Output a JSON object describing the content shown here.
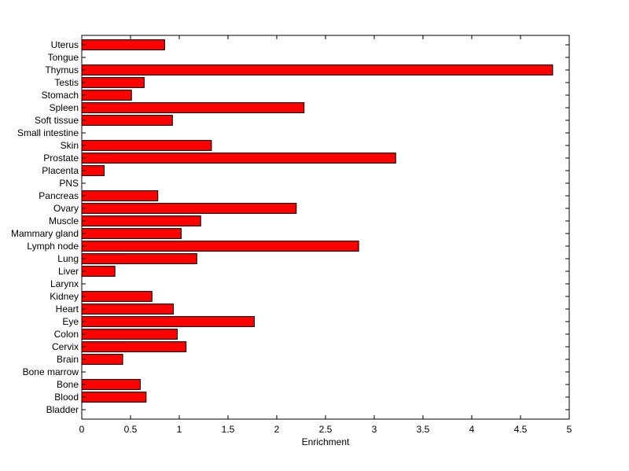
{
  "chart_data": {
    "type": "bar",
    "orientation": "horizontal",
    "title": "",
    "xlabel": "Enrichment",
    "ylabel": "",
    "xlim": [
      0,
      5
    ],
    "x_ticks": [
      "0",
      "0.5",
      "1",
      "1.5",
      "2",
      "2.5",
      "3",
      "3.5",
      "4",
      "4.5",
      "5"
    ],
    "grid": false,
    "bar_color": "#ff0000",
    "categories": [
      "Bladder",
      "Blood",
      "Bone",
      "Bone marrow",
      "Brain",
      "Cervix",
      "Colon",
      "Eye",
      "Heart",
      "Kidney",
      "Larynx",
      "Liver",
      "Lung",
      "Lymph node",
      "Mammary gland",
      "Muscle",
      "Ovary",
      "Pancreas",
      "PNS",
      "Placenta",
      "Prostate",
      "Skin",
      "Small intestine",
      "Soft tissue",
      "Spleen",
      "Stomach",
      "Testis",
      "Thymus",
      "Tongue",
      "Uterus"
    ],
    "values": [
      0,
      0.66,
      0.6,
      0,
      0.42,
      1.07,
      0.98,
      1.77,
      0.94,
      0.72,
      0,
      0.34,
      1.18,
      2.84,
      1.02,
      1.22,
      2.2,
      0.78,
      0,
      0.23,
      3.22,
      1.33,
      0,
      0.93,
      2.28,
      0.51,
      0.64,
      4.83,
      0,
      0.85
    ]
  }
}
